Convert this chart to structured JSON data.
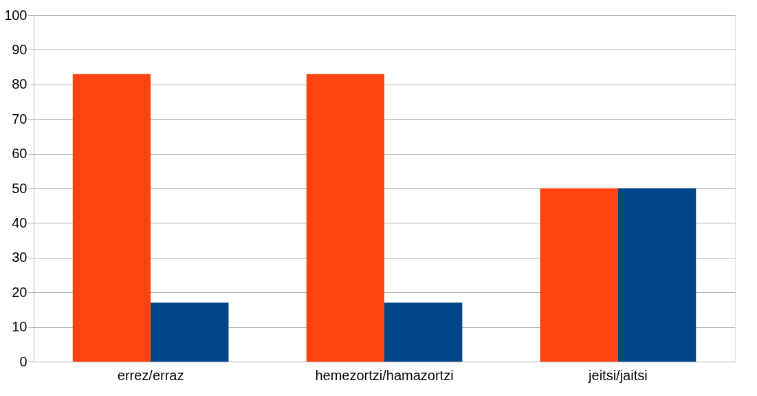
{
  "chart_data": {
    "type": "bar",
    "categories": [
      "errez/erraz",
      "hemezortzi/hamazortzi",
      "jeitsi/jaitsi"
    ],
    "series": [
      {
        "color": "#ff4411",
        "values": [
          83,
          83,
          50
        ]
      },
      {
        "color": "#004586",
        "values": [
          17,
          17,
          50
        ]
      }
    ],
    "ylim": [
      0,
      100
    ],
    "yticks": [
      0,
      10,
      20,
      30,
      40,
      50,
      60,
      70,
      80,
      90,
      100
    ],
    "grid": "y",
    "legend": false
  }
}
